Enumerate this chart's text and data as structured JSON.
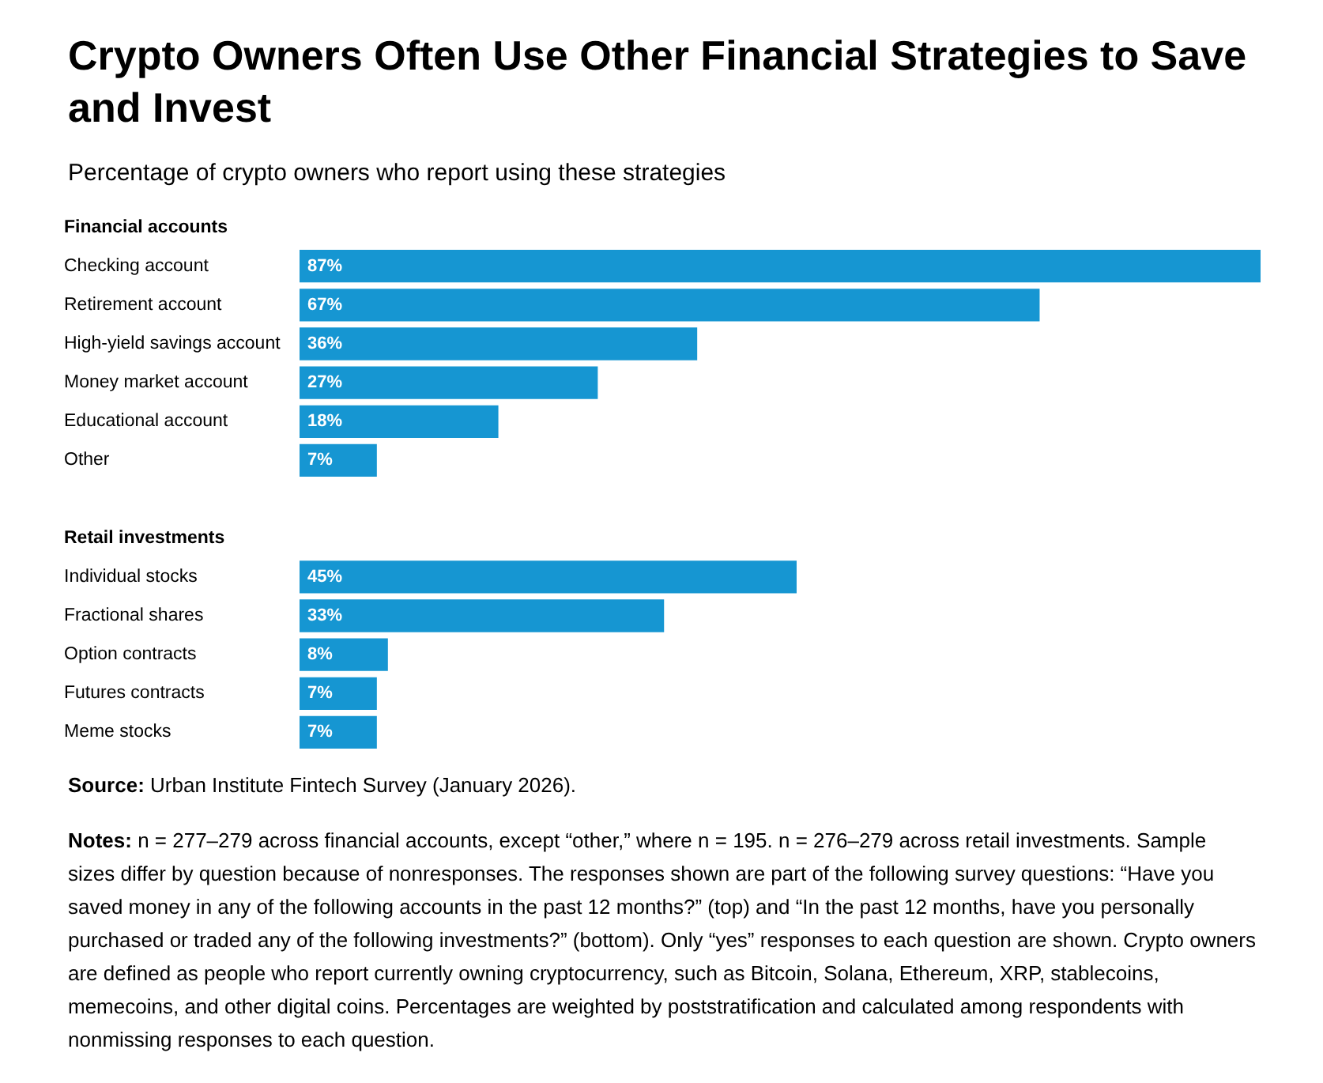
{
  "chart_data": {
    "type": "bar",
    "orientation": "horizontal",
    "title": "Crypto Owners Often Use Other Financial Strategies to Save and Invest",
    "subtitle": "Percentage of crypto owners who report using these strategies",
    "categories": [
      "Financial accounts",
      "Checking account",
      "Retirement account",
      "High-yield savings account",
      "Money market account",
      "Educational account",
      "Other",
      null,
      "Retail investments",
      "Individual stocks",
      "Fractional shares",
      "Option contracts",
      "Futures contracts",
      "Meme stocks"
    ],
    "values": [
      null,
      87,
      67,
      36,
      27,
      18,
      7,
      null,
      null,
      45,
      33,
      8,
      7,
      7
    ],
    "value_labels": [
      null,
      "87%",
      "67%",
      "36%",
      "27%",
      "18%",
      "7%",
      null,
      null,
      "45%",
      "33%",
      "8%",
      "7%",
      "7%"
    ],
    "color": "#1696d2",
    "tick_labels": false,
    "grid": false,
    "annotations": [
      "Source: Urban Institute Fintech Survey (January 2026).",
      "Notes: n = 277–279 across financial accounts, except “other,” where n = 195. n = 276–279 across retail investments. Sample sizes differ by question because of nonresponses. The responses shown are part of the following survey questions: “Have you saved money in any of the following accounts in the past 12 months?” (top) and “In the past 12 months, have you personally purchased or traded any of the following investments?” (bottom). Only “yes” responses to each question are shown. Crypto owners are defined as people who report currently owning cryptocurrency, such as Bitcoin, Solana, Ethereum, XRP, stablecoins, memecoins, and other digital coins. Percentages are weighted by poststratification and calculated among respondents with nonmissing responses to each question."
    ]
  }
}
